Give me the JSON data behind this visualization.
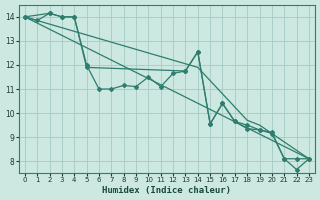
{
  "xlabel": "Humidex (Indice chaleur)",
  "xlim": [
    -0.5,
    23.5
  ],
  "ylim": [
    7.5,
    14.5
  ],
  "yticks": [
    8,
    9,
    10,
    11,
    12,
    13,
    14
  ],
  "xticks": [
    0,
    1,
    2,
    3,
    4,
    5,
    6,
    7,
    8,
    9,
    10,
    11,
    12,
    13,
    14,
    15,
    16,
    17,
    18,
    19,
    20,
    21,
    22,
    23
  ],
  "bg_color": "#cce8e0",
  "line_color": "#2e7d6e",
  "grid_color": "#aacfc8",
  "line1_x": [
    0,
    1,
    2,
    3,
    4,
    5,
    6,
    7,
    8,
    9,
    10,
    11,
    12,
    13,
    14,
    15,
    16,
    17,
    18,
    19,
    20,
    21,
    22,
    23
  ],
  "line1_y": [
    14.0,
    13.85,
    14.15,
    14.0,
    14.0,
    12.0,
    11.0,
    11.0,
    11.15,
    11.1,
    11.5,
    11.1,
    11.65,
    11.75,
    12.55,
    9.55,
    10.4,
    9.65,
    9.5,
    9.3,
    9.2,
    8.1,
    8.1,
    8.1
  ],
  "line2_x": [
    0,
    23
  ],
  "line2_y": [
    14.0,
    8.1
  ],
  "line3_x": [
    0,
    1,
    2,
    3,
    4,
    5,
    6,
    7,
    8,
    9,
    10,
    11,
    12,
    13,
    14,
    15,
    16,
    17,
    18,
    19,
    20,
    21,
    22,
    23
  ],
  "line3_y": [
    14.0,
    13.85,
    13.7,
    13.55,
    13.4,
    13.25,
    13.1,
    12.95,
    12.8,
    12.65,
    12.5,
    12.35,
    12.2,
    12.05,
    11.9,
    11.35,
    10.8,
    10.25,
    9.7,
    9.5,
    9.15,
    8.8,
    8.45,
    8.1
  ],
  "line4_x": [
    0,
    2,
    3,
    4,
    5,
    13,
    14,
    15,
    16,
    17,
    18,
    19,
    20,
    21,
    22,
    23
  ],
  "line4_y": [
    14.0,
    14.15,
    14.0,
    14.0,
    11.9,
    11.75,
    12.55,
    9.55,
    10.4,
    9.65,
    9.35,
    9.3,
    9.15,
    8.1,
    7.65,
    8.1
  ]
}
